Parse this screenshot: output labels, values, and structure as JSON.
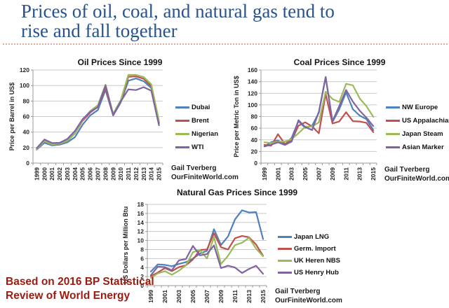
{
  "slide": {
    "title_lines": [
      "Prices of oil, coal, and natural gas tend to",
      "rise and fall together"
    ],
    "title_color": "#27538E",
    "divider_color": "#E2A79C",
    "footnote": "Based on 2016 BP Statistical Review of World Energy",
    "footnote_color": "#9B1B10"
  },
  "chart_data": [
    {
      "type": "line",
      "title": "Oil Prices Since 1999",
      "ylabel": "Price per Barrel in US$",
      "ylim": [
        0,
        120
      ],
      "ytick_step": 20,
      "grid": true,
      "legend_position": "right",
      "x": [
        1999,
        2000,
        2001,
        2002,
        2003,
        2004,
        2005,
        2006,
        2007,
        2008,
        2009,
        2010,
        2011,
        2012,
        2013,
        2014,
        2015
      ],
      "xtick_every": 1,
      "series": [
        {
          "name": "Dubai",
          "color": "#4F81BD",
          "values": [
            17.5,
            26.2,
            22.8,
            23.7,
            26.8,
            33.6,
            49.4,
            61.5,
            68.4,
            94.3,
            61.4,
            78.1,
            106.2,
            109.1,
            105.5,
            96.7,
            51.2
          ]
        },
        {
          "name": "Brent",
          "color": "#C0504D",
          "values": [
            17.9,
            28.5,
            24.4,
            25.0,
            28.8,
            38.3,
            54.5,
            65.1,
            72.4,
            97.3,
            61.7,
            79.5,
            111.3,
            111.7,
            108.7,
            99.0,
            52.4
          ]
        },
        {
          "name": "Nigerian",
          "color": "#9BBB59",
          "values": [
            18.1,
            28.4,
            24.2,
            25.0,
            28.7,
            38.3,
            55.7,
            67.1,
            74.5,
            101.1,
            63.4,
            81.1,
            113.7,
            113.7,
            111.0,
            101.4,
            54.4
          ]
        },
        {
          "name": "WTI",
          "color": "#8064A2",
          "values": [
            19.3,
            30.4,
            25.9,
            26.2,
            31.1,
            41.5,
            56.6,
            66.0,
            72.2,
            100.1,
            61.9,
            79.5,
            95.0,
            94.1,
            97.9,
            93.3,
            48.7
          ]
        }
      ],
      "attribution": [
        "Gail Tverberg",
        "OurFiniteWorld.com"
      ]
    },
    {
      "type": "line",
      "title": "Coal Prices Since 1999",
      "ylabel": "Price per Metric Ton in US$",
      "ylim": [
        0,
        160
      ],
      "ytick_step": 20,
      "grid": true,
      "legend_position": "right",
      "x": [
        1999,
        2000,
        2001,
        2002,
        2003,
        2004,
        2005,
        2006,
        2007,
        2008,
        2009,
        2010,
        2011,
        2012,
        2013,
        2014,
        2015
      ],
      "xtick_every": 2,
      "series": [
        {
          "name": "NW Europe",
          "color": "#4F81BD",
          "values": [
            28.8,
            36.0,
            39.0,
            31.7,
            43.6,
            72.1,
            60.5,
            64.1,
            86.6,
            147.7,
            70.7,
            92.5,
            121.5,
            92.5,
            81.7,
            75.4,
            56.6
          ]
        },
        {
          "name": "US Appalachian",
          "color": "#C0504D",
          "values": [
            31.3,
            29.9,
            49.7,
            33.0,
            38.5,
            64.3,
            70.1,
            62.9,
            51.2,
            118.8,
            68.1,
            71.6,
            87.4,
            72.1,
            71.4,
            69.0,
            53.0
          ]
        },
        {
          "name": "Japan Steam",
          "color": "#9BBB59",
          "values": [
            35.7,
            34.6,
            37.0,
            36.9,
            41.3,
            51.3,
            62.5,
            63.0,
            69.9,
            122.8,
            110.1,
            105.2,
            136.3,
            133.6,
            111.2,
            97.7,
            79.5
          ]
        },
        {
          "name": "Asian Marker",
          "color": "#8064A2",
          "values": [
            28.5,
            31.8,
            35.7,
            31.1,
            36.9,
            73.8,
            62.0,
            56.7,
            88.0,
            148.1,
            72.0,
            98.0,
            125.7,
            105.5,
            90.1,
            77.9,
            63.5
          ]
        }
      ],
      "attribution": [
        "Gail Tverberg",
        "OurFiniteWorld.com"
      ]
    },
    {
      "type": "line",
      "title": "Natural Gas Prices Since 1999",
      "ylabel": "US Dollars per Million Btu",
      "ylim": [
        0,
        18
      ],
      "ytick_step": 2,
      "grid": true,
      "legend_position": "right",
      "x": [
        1999,
        2000,
        2001,
        2002,
        2003,
        2004,
        2005,
        2006,
        2007,
        2008,
        2009,
        2010,
        2011,
        2012,
        2013,
        2014,
        2015
      ],
      "xtick_every": 2,
      "series": [
        {
          "name": "Japan LNG",
          "color": "#4F81BD",
          "values": [
            3.1,
            4.7,
            4.6,
            4.3,
            4.8,
            5.2,
            6.0,
            7.1,
            7.7,
            12.5,
            9.0,
            10.9,
            14.7,
            16.7,
            16.2,
            16.3,
            10.3
          ]
        },
        {
          "name": "Germ. Import",
          "color": "#C0504D",
          "values": [
            2.1,
            2.9,
            3.9,
            3.2,
            4.1,
            4.5,
            5.8,
            7.9,
            8.0,
            11.6,
            8.5,
            8.0,
            10.5,
            11.0,
            10.7,
            9.1,
            6.6
          ]
        },
        {
          "name": "UK Heren NBS",
          "color": "#9BBB59",
          "values": [
            1.7,
            2.7,
            3.2,
            2.4,
            3.3,
            4.5,
            7.4,
            7.9,
            6.0,
            10.8,
            4.8,
            6.6,
            9.0,
            9.5,
            10.6,
            8.2,
            6.5
          ]
        },
        {
          "name": "US Henry Hub",
          "color": "#8064A2",
          "values": [
            2.3,
            4.2,
            4.1,
            3.4,
            5.6,
            5.9,
            8.8,
            6.7,
            7.0,
            8.9,
            3.9,
            4.4,
            4.0,
            2.8,
            3.7,
            4.4,
            2.6
          ]
        }
      ],
      "attribution": [
        "Gail Tverberg",
        "OurFiniteWorld.com"
      ]
    }
  ]
}
